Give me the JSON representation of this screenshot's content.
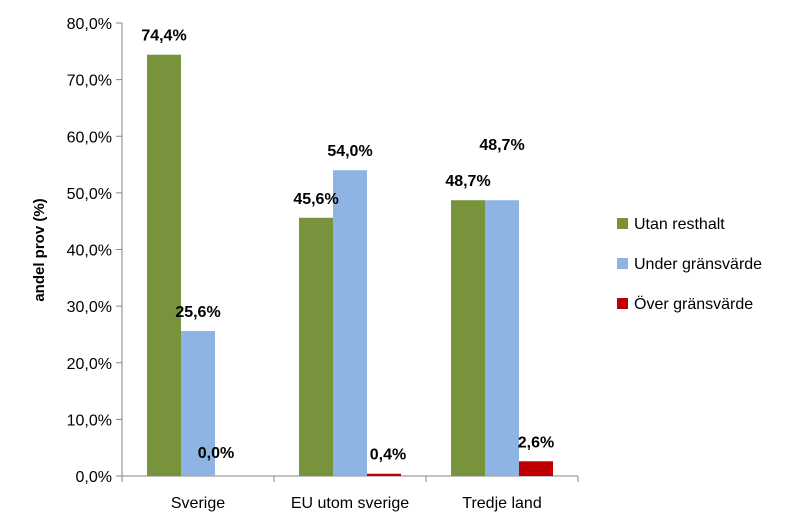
{
  "chart_data": {
    "type": "bar",
    "categories": [
      "Sverige",
      "EU utom sverige",
      "Tredje land"
    ],
    "series": [
      {
        "name": "Utan resthalt",
        "color": "#77933C",
        "values": [
          74.4,
          45.6,
          48.7
        ],
        "labels": [
          "74,4%",
          "45,6%",
          "48,7%"
        ]
      },
      {
        "name": "Under gränsvärde",
        "color": "#8EB4E3",
        "values": [
          25.6,
          54.0,
          48.7
        ],
        "labels": [
          "25,6%",
          "54,0%",
          "48,7%"
        ]
      },
      {
        "name": "Över gränsvärde",
        "color": "#C00000",
        "values": [
          0.0,
          0.4,
          2.6
        ],
        "labels": [
          "0,0%",
          "0,4%",
          "2,6%"
        ]
      }
    ],
    "ylabel": "andel prov (%)",
    "ylim": [
      0,
      80
    ],
    "yticks": [
      0,
      10,
      20,
      30,
      40,
      50,
      60,
      70,
      80
    ],
    "ytick_labels": [
      "0,0%",
      "10,0%",
      "20,0%",
      "30,0%",
      "40,0%",
      "50,0%",
      "60,0%",
      "70,0%",
      "80,0%"
    ],
    "grid": false,
    "legend_position": "right"
  }
}
